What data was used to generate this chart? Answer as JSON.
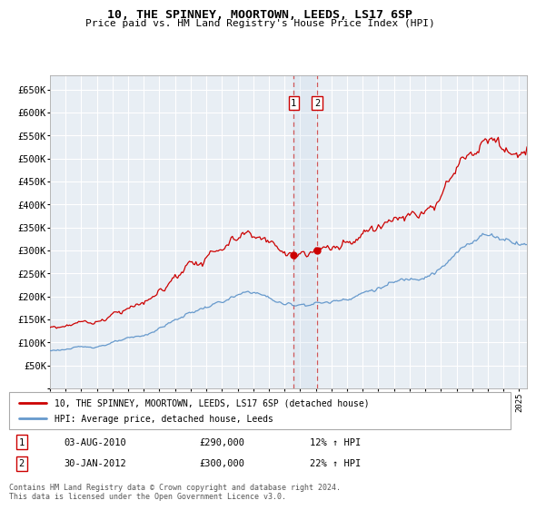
{
  "title1": "10, THE SPINNEY, MOORTOWN, LEEDS, LS17 6SP",
  "title2": "Price paid vs. HM Land Registry's House Price Index (HPI)",
  "legend_label_red": "10, THE SPINNEY, MOORTOWN, LEEDS, LS17 6SP (detached house)",
  "legend_label_blue": "HPI: Average price, detached house, Leeds",
  "sale1_label": "1",
  "sale1_date": "03-AUG-2010",
  "sale1_price": "£290,000",
  "sale1_hpi": "12% ↑ HPI",
  "sale2_label": "2",
  "sale2_date": "30-JAN-2012",
  "sale2_price": "£300,000",
  "sale2_hpi": "22% ↑ HPI",
  "footnote": "Contains HM Land Registry data © Crown copyright and database right 2024.\nThis data is licensed under the Open Government Licence v3.0.",
  "ylim": [
    0,
    680000
  ],
  "ytick_values": [
    0,
    50000,
    100000,
    150000,
    200000,
    250000,
    300000,
    350000,
    400000,
    450000,
    500000,
    550000,
    600000,
    650000
  ],
  "ytick_labels": [
    "",
    "£50K",
    "£100K",
    "£150K",
    "£200K",
    "£250K",
    "£300K",
    "£350K",
    "£400K",
    "£450K",
    "£500K",
    "£550K",
    "£600K",
    "£650K"
  ],
  "xlim_start": 1995.0,
  "xlim_end": 2025.5,
  "sale1_x": 2010.583,
  "sale1_y": 290000,
  "sale2_x": 2012.083,
  "sale2_y": 300000,
  "bg_color": "#e8eef4",
  "grid_color": "#ffffff",
  "red_color": "#cc0000",
  "blue_color": "#6699cc",
  "hpi_base_1995": 82000,
  "hpi_base_ratio": 1.22,
  "prop_base_1995": 92000
}
